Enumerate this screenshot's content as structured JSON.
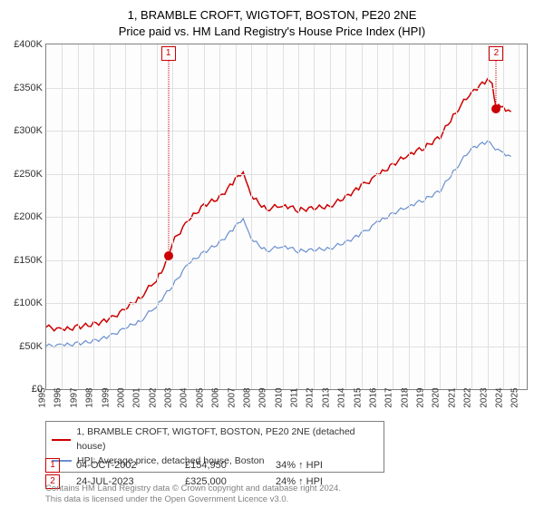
{
  "title_line1": "1, BRAMBLE CROFT, WIGTOFT, BOSTON, PE20 2NE",
  "title_line2": "Price paid vs. HM Land Registry's House Price Index (HPI)",
  "chart": {
    "type": "line",
    "x_min": 1995,
    "x_max": 2025.5,
    "y_min": 0,
    "y_max": 400000,
    "y_ticks": [
      0,
      50000,
      100000,
      150000,
      200000,
      250000,
      300000,
      350000,
      400000
    ],
    "y_tick_labels": [
      "£0",
      "£50K",
      "£100K",
      "£150K",
      "£200K",
      "£250K",
      "£300K",
      "£350K",
      "£400K"
    ],
    "x_ticks": [
      1995,
      1996,
      1997,
      1998,
      1999,
      2000,
      2001,
      2002,
      2003,
      2004,
      2005,
      2006,
      2007,
      2008,
      2009,
      2010,
      2011,
      2012,
      2013,
      2014,
      2015,
      2016,
      2017,
      2018,
      2019,
      2020,
      2021,
      2022,
      2023,
      2024,
      2025
    ],
    "grid_color": "#e0e0e0",
    "border_color": "#808080",
    "background": "#fdfdfd",
    "series": [
      {
        "name": "property",
        "label": "1, BRAMBLE CROFT, WIGTOFT, BOSTON, PE20 2NE (detached house)",
        "color": "#cc0000",
        "width": 1.5,
        "points": [
          [
            1995,
            72000
          ],
          [
            1996,
            70000
          ],
          [
            1997,
            75000
          ],
          [
            1998,
            78000
          ],
          [
            1999,
            82000
          ],
          [
            2000,
            92000
          ],
          [
            2001,
            105000
          ],
          [
            2002,
            125000
          ],
          [
            2002.75,
            154950
          ],
          [
            2003,
            168000
          ],
          [
            2004,
            195000
          ],
          [
            2005,
            215000
          ],
          [
            2006,
            225000
          ],
          [
            2007,
            245000
          ],
          [
            2007.5,
            252000
          ],
          [
            2008,
            225000
          ],
          [
            2009,
            208000
          ],
          [
            2010,
            212000
          ],
          [
            2011,
            205000
          ],
          [
            2012,
            208000
          ],
          [
            2013,
            212000
          ],
          [
            2014,
            225000
          ],
          [
            2015,
            238000
          ],
          [
            2016,
            250000
          ],
          [
            2017,
            262000
          ],
          [
            2018,
            272000
          ],
          [
            2019,
            278000
          ],
          [
            2020,
            290000
          ],
          [
            2021,
            320000
          ],
          [
            2022,
            345000
          ],
          [
            2023,
            360000
          ],
          [
            2023.3,
            355000
          ],
          [
            2023.57,
            325000
          ],
          [
            2024,
            328000
          ],
          [
            2024.5,
            322000
          ]
        ]
      },
      {
        "name": "hpi",
        "label": "HPI: Average price, detached house, Boston",
        "color": "#6a8fd0",
        "width": 1.2,
        "points": [
          [
            1995,
            50000
          ],
          [
            1996,
            52000
          ],
          [
            1997,
            55000
          ],
          [
            1998,
            58000
          ],
          [
            1999,
            62000
          ],
          [
            2000,
            70000
          ],
          [
            2001,
            78000
          ],
          [
            2002,
            95000
          ],
          [
            2003,
            118000
          ],
          [
            2004,
            145000
          ],
          [
            2005,
            160000
          ],
          [
            2006,
            172000
          ],
          [
            2007,
            190000
          ],
          [
            2007.5,
            198000
          ],
          [
            2008,
            175000
          ],
          [
            2009,
            160000
          ],
          [
            2010,
            165000
          ],
          [
            2011,
            158000
          ],
          [
            2012,
            160000
          ],
          [
            2013,
            163000
          ],
          [
            2014,
            172000
          ],
          [
            2015,
            182000
          ],
          [
            2016,
            195000
          ],
          [
            2017,
            205000
          ],
          [
            2018,
            212000
          ],
          [
            2019,
            218000
          ],
          [
            2020,
            228000
          ],
          [
            2021,
            255000
          ],
          [
            2022,
            280000
          ],
          [
            2023,
            288000
          ],
          [
            2024,
            275000
          ],
          [
            2024.5,
            270000
          ]
        ]
      }
    ],
    "markers": [
      {
        "n": "1",
        "x": 2002.75,
        "y": 154950
      },
      {
        "n": "2",
        "x": 2023.57,
        "y": 325000
      }
    ]
  },
  "legend": {
    "items": [
      {
        "color": "#cc0000",
        "label": "1, BRAMBLE CROFT, WIGTOFT, BOSTON, PE20 2NE (detached house)"
      },
      {
        "color": "#6a8fd0",
        "label": "HPI: Average price, detached house, Boston"
      }
    ]
  },
  "sales": [
    {
      "n": "1",
      "date": "04-OCT-2002",
      "price": "£154,950",
      "pct": "34% ↑ HPI"
    },
    {
      "n": "2",
      "date": "24-JUL-2023",
      "price": "£325,000",
      "pct": "24% ↑ HPI"
    }
  ],
  "footer_line1": "Contains HM Land Registry data © Crown copyright and database right 2024.",
  "footer_line2": "This data is licensed under the Open Government Licence v3.0."
}
